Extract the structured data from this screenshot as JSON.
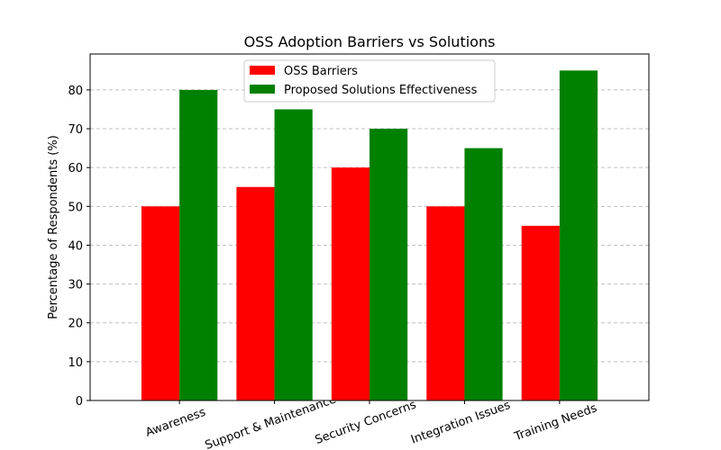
{
  "chart_data": {
    "type": "bar",
    "title": "OSS Adoption Barriers vs Solutions",
    "xlabel": "",
    "ylabel": "Percentage of Respondents (%)",
    "categories": [
      "Awareness",
      "Support & Maintenance",
      "Security Concerns",
      "Integration Issues",
      "Training Needs"
    ],
    "series": [
      {
        "name": "OSS Barriers",
        "color": "#ff0000",
        "values": [
          50,
          55,
          60,
          50,
          45
        ]
      },
      {
        "name": "Proposed Solutions Effectiveness",
        "color": "#008000",
        "values": [
          80,
          75,
          70,
          65,
          85
        ]
      }
    ],
    "ylim": [
      0,
      89.25
    ],
    "yticks": [
      0,
      10,
      20,
      30,
      40,
      50,
      60,
      70,
      80
    ],
    "grid": "y-dashed",
    "legend_position": "upper-center",
    "xtick_rotation": 20
  }
}
